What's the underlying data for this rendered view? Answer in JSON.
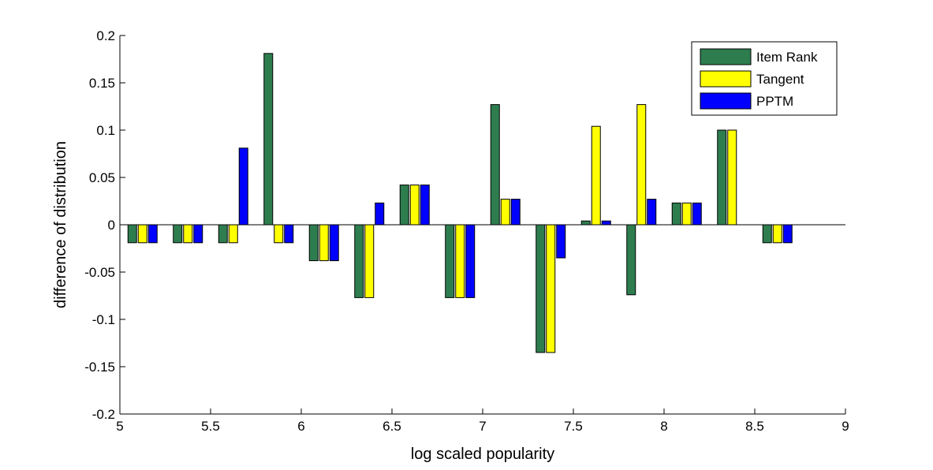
{
  "chart_data": {
    "type": "bar",
    "title": "",
    "xlabel": "log scaled popularity",
    "ylabel": "difference of distribution",
    "xlim": [
      5,
      9
    ],
    "ylim": [
      -0.2,
      0.2
    ],
    "x_ticks": [
      "5",
      "5.5",
      "6",
      "6.5",
      "7",
      "7.5",
      "8",
      "8.5",
      "9"
    ],
    "y_ticks": [
      "0.2",
      "0.15",
      "0.1",
      "0.05",
      "0",
      "-0.05",
      "-0.1",
      "-0.15",
      "-0.2"
    ],
    "grid": false,
    "legend_position": "top-right",
    "categories": [
      5.125,
      5.375,
      5.625,
      5.875,
      6.125,
      6.375,
      6.625,
      6.875,
      7.125,
      7.375,
      7.625,
      7.875,
      8.125,
      8.375,
      8.625
    ],
    "series": [
      {
        "name": "Item Rank",
        "color": "#2E7D4F",
        "values": [
          -0.019,
          -0.019,
          -0.019,
          0.181,
          -0.038,
          -0.077,
          0.042,
          -0.077,
          0.127,
          -0.135,
          0.004,
          -0.074,
          0.023,
          0.1,
          -0.019
        ]
      },
      {
        "name": "Tangent",
        "color": "#FFFF00",
        "values": [
          -0.019,
          -0.019,
          -0.019,
          -0.019,
          -0.038,
          -0.077,
          0.042,
          -0.077,
          0.027,
          -0.135,
          0.104,
          0.127,
          0.023,
          0.1,
          -0.019
        ]
      },
      {
        "name": "PPTM",
        "color": "#0000FF",
        "values": [
          -0.019,
          -0.019,
          0.081,
          -0.019,
          -0.038,
          0.023,
          0.042,
          -0.077,
          0.027,
          -0.035,
          0.004,
          0.027,
          0.023,
          0,
          -0.019
        ]
      }
    ]
  }
}
